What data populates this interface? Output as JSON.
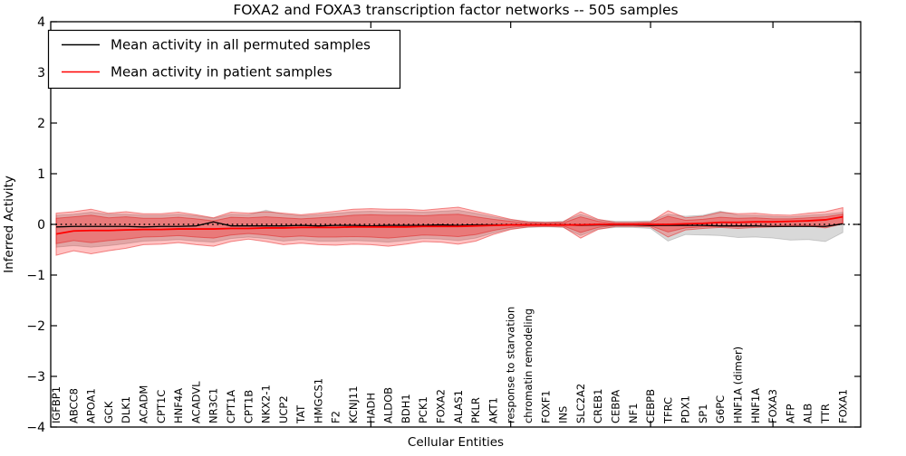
{
  "title": "FOXA2 and FOXA3 transcription factor networks -- 505 samples",
  "legend": {
    "items": [
      {
        "label": "Mean activity in all permuted samples",
        "color": "#000000"
      },
      {
        "label": "Mean activity in patient samples",
        "color": "#ff0000"
      }
    ]
  },
  "axes": {
    "ylabel": "Inferred Activity",
    "xlabel": "Cellular Entities",
    "ytick_labels": [
      "4",
      "3",
      "2",
      "1",
      "0",
      "−1",
      "−2",
      "−3",
      "−4"
    ],
    "ytick_values": [
      4,
      3,
      2,
      1,
      0,
      -1,
      -2,
      -3,
      -4
    ],
    "ylim": [
      -4,
      4
    ]
  },
  "chart_data": {
    "type": "line",
    "title": "FOXA2 and FOXA3 transcription factor networks -- 505 samples",
    "xlabel": "Cellular Entities",
    "ylabel": "Inferred Activity",
    "ylim": [
      -4,
      4
    ],
    "grid": false,
    "zero_reference_line": {
      "style": "dotted",
      "color": "#000000",
      "value": 0
    },
    "legend_position": "upper left",
    "top_tick_indices": [
      18,
      26,
      34,
      41
    ],
    "categories": [
      "IGFBP1",
      "ABCC8",
      "APOA1",
      "GCK",
      "DLK1",
      "ACADM",
      "CPT1C",
      "HNF4A",
      "ACADVL",
      "NR3C1",
      "CPT1A",
      "CPT1B",
      "NKX2-1",
      "UCP2",
      "TAT",
      "HMGCS1",
      "F2",
      "KCNJ11",
      "HADH",
      "ALDOB",
      "BDH1",
      "PCK1",
      "FOXA2",
      "ALAS1",
      "PKLR",
      "AKT1",
      "response to starvation",
      "chromatin remodeling",
      "FOXF1",
      "INS",
      "SLC2A2",
      "CREB1",
      "CEBPA",
      "NF1",
      "CEBPB",
      "TFRC",
      "PDX1",
      "SP1",
      "G6PC",
      "HNF1A (dimer)",
      "HNF1A",
      "FOXA3",
      "AFP",
      "ALB",
      "TTR",
      "FOXA1"
    ],
    "series": [
      {
        "name": "Mean activity in all permuted samples",
        "color": "#000000",
        "width": 1.3,
        "values": [
          -0.05,
          -0.04,
          -0.04,
          -0.04,
          -0.04,
          -0.05,
          -0.04,
          -0.04,
          -0.03,
          0.05,
          -0.03,
          -0.03,
          -0.03,
          -0.03,
          -0.02,
          -0.03,
          -0.02,
          -0.02,
          -0.03,
          -0.02,
          -0.02,
          -0.02,
          -0.01,
          -0.02,
          -0.01,
          -0.01,
          -0.01,
          -0.01,
          -0.01,
          -0.01,
          -0.02,
          -0.01,
          -0.01,
          -0.01,
          -0.02,
          -0.02,
          -0.02,
          -0.02,
          -0.03,
          -0.03,
          -0.03,
          -0.04,
          -0.04,
          -0.04,
          -0.04,
          0.01
        ]
      },
      {
        "name": "Mean activity in patient samples",
        "color": "#ff0000",
        "width": 1.8,
        "values": [
          -0.19,
          -0.13,
          -0.12,
          -0.12,
          -0.11,
          -0.1,
          -0.1,
          -0.09,
          -0.09,
          -0.09,
          -0.08,
          -0.08,
          -0.07,
          -0.07,
          -0.06,
          -0.06,
          -0.06,
          -0.05,
          -0.05,
          -0.05,
          -0.05,
          -0.04,
          -0.04,
          -0.04,
          -0.03,
          -0.02,
          -0.01,
          -0.01,
          -0.01,
          -0.01,
          -0.01,
          0.0,
          0.0,
          0.0,
          0.0,
          0.0,
          0.01,
          0.02,
          0.04,
          0.04,
          0.05,
          0.05,
          0.06,
          0.07,
          0.09,
          0.15
        ]
      }
    ],
    "bands": [
      {
        "name": "permuted-samples-range",
        "color": "#808080",
        "opacity": 0.3,
        "edge": "rgba(0,0,0,0.15)",
        "hi": [
          0.18,
          0.2,
          0.24,
          0.2,
          0.2,
          0.18,
          0.18,
          0.2,
          0.17,
          0.12,
          0.2,
          0.19,
          0.28,
          0.2,
          0.17,
          0.19,
          0.22,
          0.25,
          0.26,
          0.25,
          0.25,
          0.24,
          0.26,
          0.28,
          0.22,
          0.15,
          0.09,
          0.06,
          0.05,
          0.06,
          0.2,
          0.09,
          0.06,
          0.06,
          0.07,
          0.2,
          0.16,
          0.18,
          0.26,
          0.18,
          0.18,
          0.16,
          0.15,
          0.18,
          0.2,
          0.24
        ],
        "lo": [
          -0.45,
          -0.42,
          -0.45,
          -0.42,
          -0.38,
          -0.33,
          -0.32,
          -0.3,
          -0.33,
          -0.35,
          -0.28,
          -0.25,
          -0.28,
          -0.33,
          -0.3,
          -0.33,
          -0.33,
          -0.32,
          -0.33,
          -0.35,
          -0.32,
          -0.28,
          -0.29,
          -0.32,
          -0.27,
          -0.17,
          -0.09,
          -0.06,
          -0.05,
          -0.06,
          -0.22,
          -0.09,
          -0.06,
          -0.06,
          -0.08,
          -0.33,
          -0.2,
          -0.21,
          -0.22,
          -0.26,
          -0.25,
          -0.27,
          -0.31,
          -0.3,
          -0.34,
          -0.16
        ]
      },
      {
        "name": "patient-samples-range-outer",
        "color": "#ff0000",
        "opacity": 0.24,
        "edge": "rgba(230,30,30,0.5)",
        "hi": [
          0.22,
          0.25,
          0.3,
          0.22,
          0.25,
          0.21,
          0.21,
          0.24,
          0.19,
          0.13,
          0.24,
          0.22,
          0.25,
          0.22,
          0.19,
          0.22,
          0.26,
          0.3,
          0.31,
          0.3,
          0.3,
          0.28,
          0.31,
          0.34,
          0.26,
          0.18,
          0.1,
          0.05,
          0.04,
          0.05,
          0.25,
          0.1,
          0.04,
          0.04,
          0.05,
          0.27,
          0.13,
          0.16,
          0.24,
          0.21,
          0.22,
          0.19,
          0.18,
          0.22,
          0.25,
          0.33
        ],
        "lo": [
          -0.61,
          -0.52,
          -0.58,
          -0.52,
          -0.47,
          -0.4,
          -0.39,
          -0.36,
          -0.4,
          -0.43,
          -0.34,
          -0.29,
          -0.34,
          -0.4,
          -0.37,
          -0.4,
          -0.41,
          -0.39,
          -0.4,
          -0.43,
          -0.39,
          -0.34,
          -0.35,
          -0.39,
          -0.33,
          -0.2,
          -0.1,
          -0.05,
          -0.04,
          -0.05,
          -0.27,
          -0.1,
          -0.04,
          -0.04,
          -0.05,
          -0.25,
          -0.11,
          -0.08,
          -0.06,
          -0.08,
          -0.06,
          -0.05,
          -0.04,
          -0.03,
          -0.07,
          0.01
        ]
      },
      {
        "name": "patient-samples-range-inner",
        "color": "#ff0000",
        "opacity": 0.26,
        "edge": "rgba(220,0,0,0.4)",
        "hi": [
          0.12,
          0.15,
          0.18,
          0.13,
          0.15,
          0.12,
          0.12,
          0.14,
          0.11,
          0.07,
          0.14,
          0.13,
          0.15,
          0.13,
          0.11,
          0.13,
          0.15,
          0.18,
          0.19,
          0.18,
          0.18,
          0.17,
          0.19,
          0.2,
          0.15,
          0.1,
          0.06,
          0.03,
          0.02,
          0.03,
          0.15,
          0.06,
          0.02,
          0.02,
          0.03,
          0.16,
          0.08,
          0.1,
          0.14,
          0.12,
          0.13,
          0.11,
          0.11,
          0.13,
          0.15,
          0.2
        ],
        "lo": [
          -0.38,
          -0.32,
          -0.36,
          -0.32,
          -0.29,
          -0.25,
          -0.24,
          -0.22,
          -0.25,
          -0.27,
          -0.21,
          -0.18,
          -0.21,
          -0.25,
          -0.23,
          -0.25,
          -0.25,
          -0.24,
          -0.25,
          -0.27,
          -0.24,
          -0.21,
          -0.22,
          -0.24,
          -0.2,
          -0.12,
          -0.06,
          -0.03,
          -0.02,
          -0.03,
          -0.16,
          -0.06,
          -0.02,
          -0.02,
          -0.03,
          -0.15,
          -0.07,
          -0.05,
          -0.04,
          -0.05,
          -0.04,
          -0.03,
          -0.02,
          -0.02,
          -0.04,
          0.03
        ]
      }
    ]
  }
}
